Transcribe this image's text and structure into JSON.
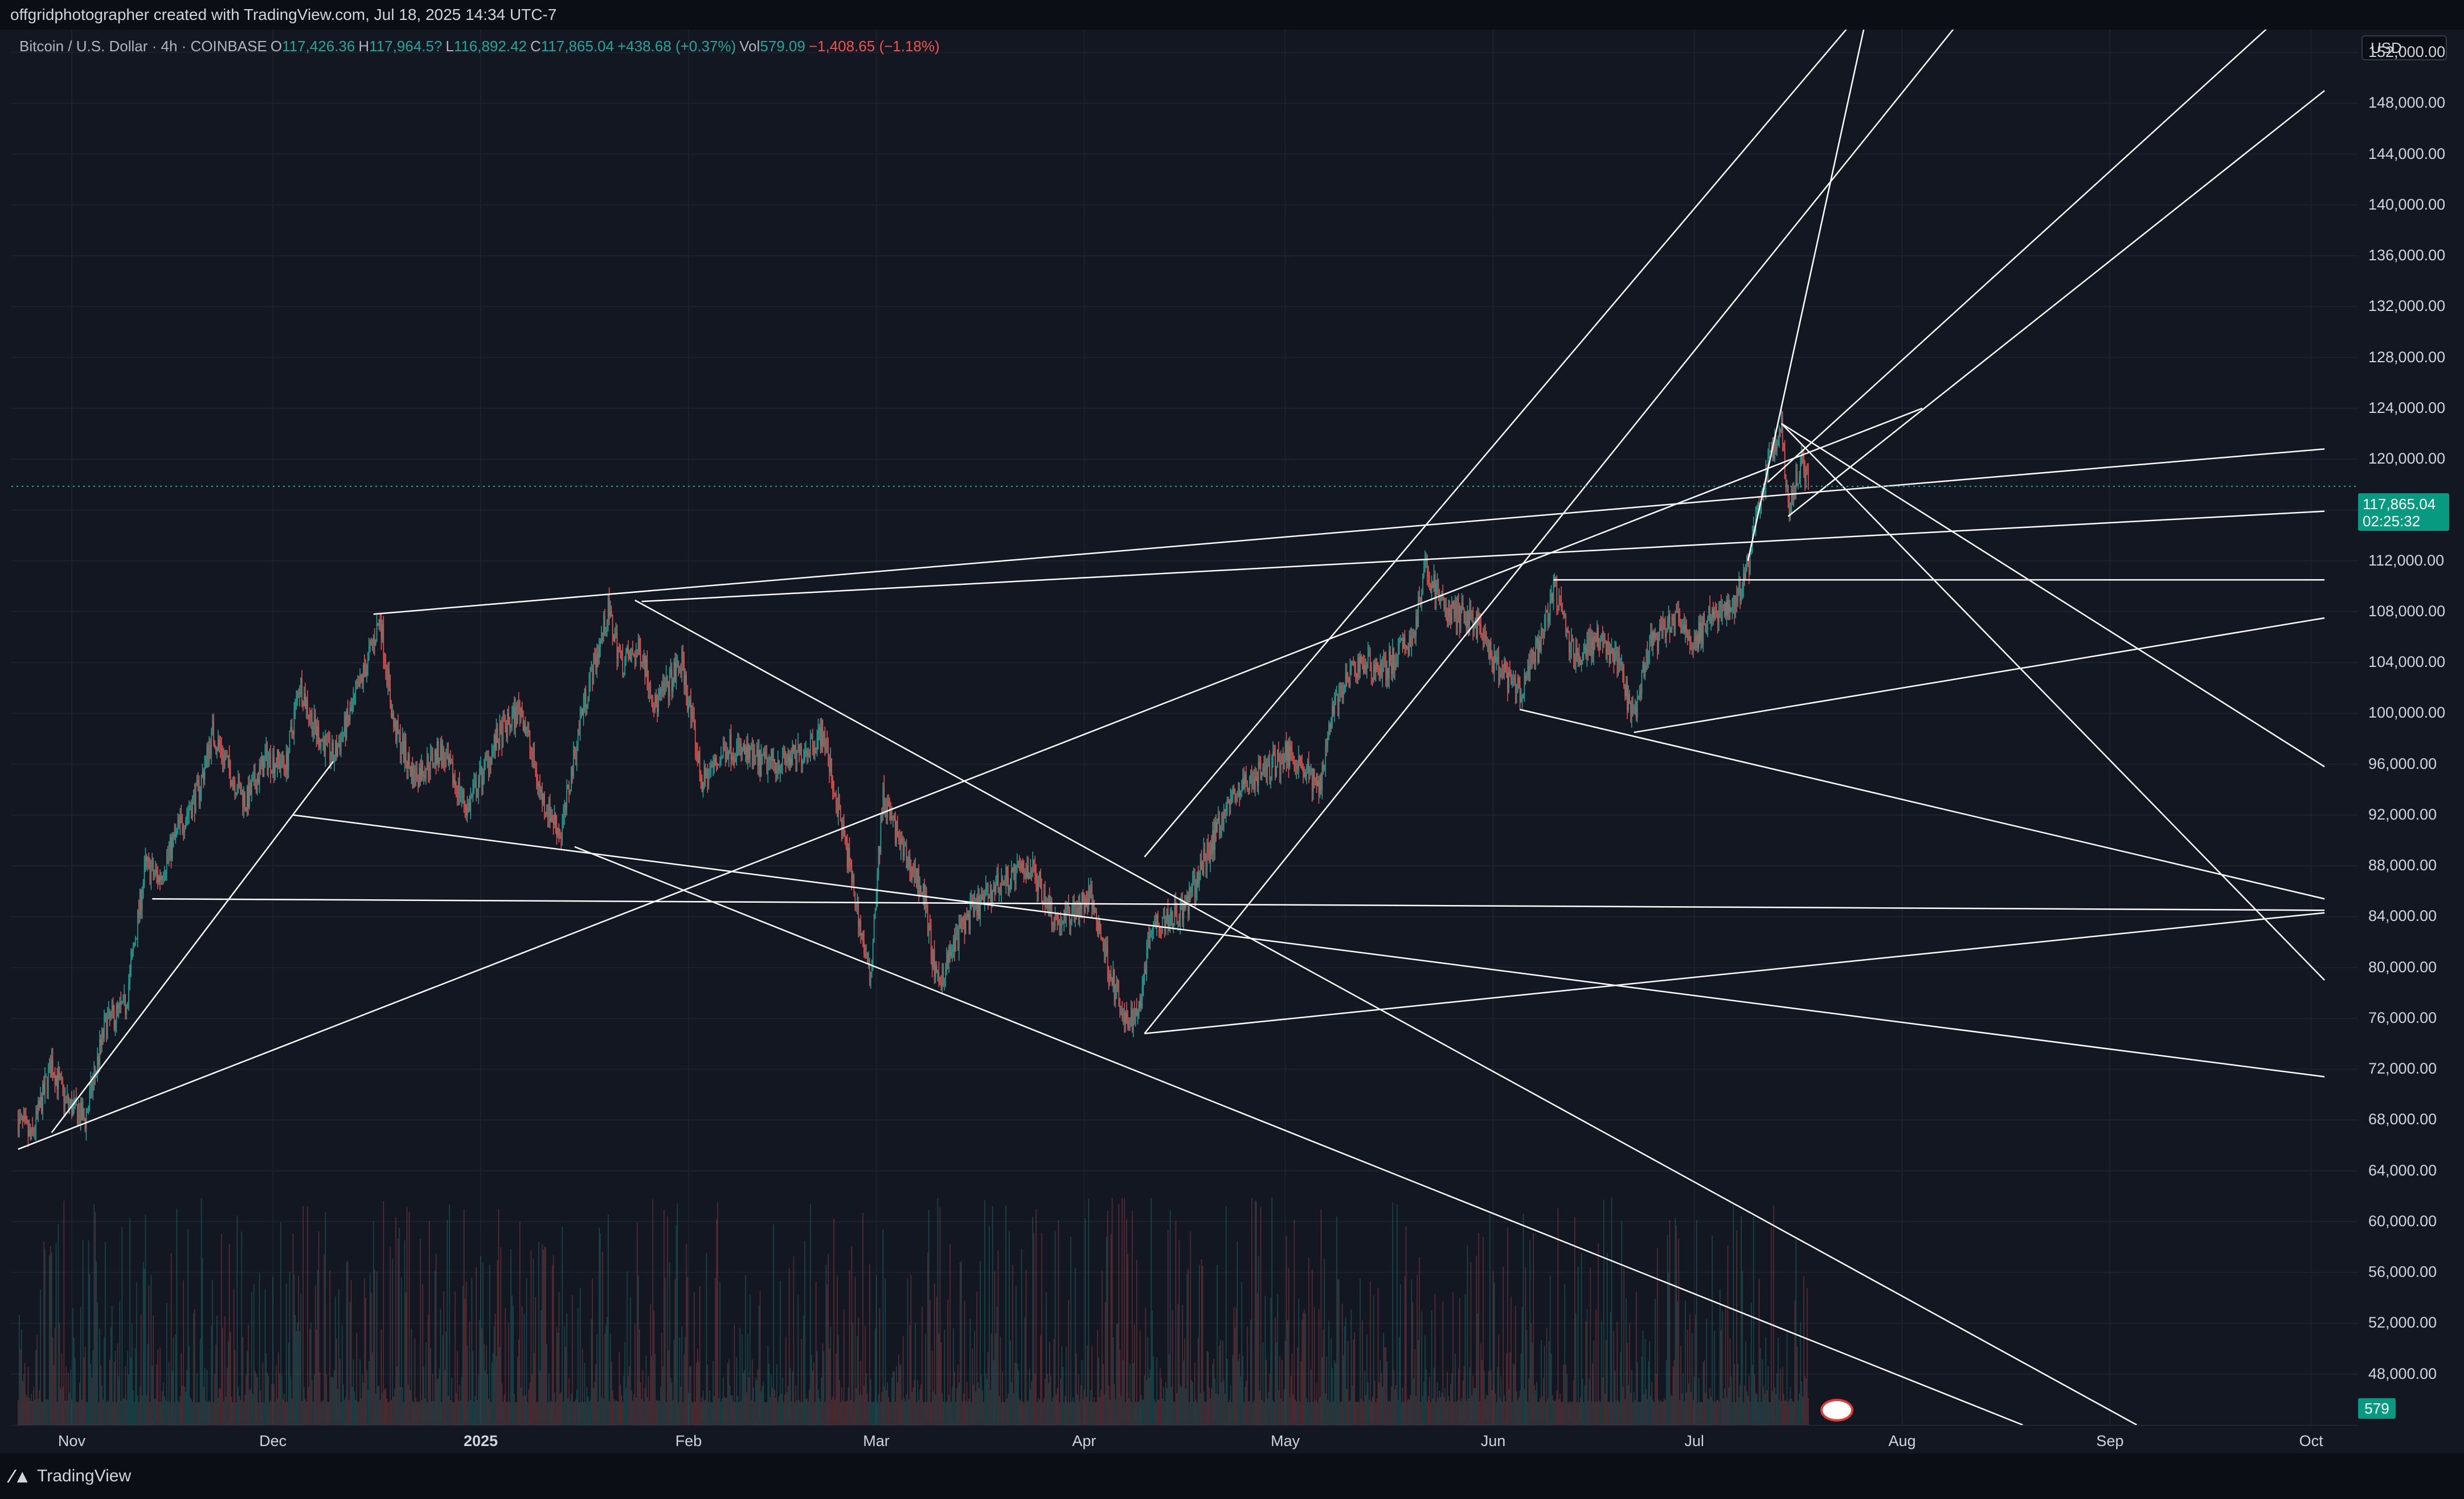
{
  "header": {
    "credit": "offgridphotographer created with TradingView.com, Jul 18, 2025 14:34 UTC-7"
  },
  "legend": {
    "symbol": "Bitcoin / U.S. Dollar · 4h · COINBASE",
    "o_label": "O",
    "o_value": "117,426.36",
    "h_label": "H",
    "h_value": "117,964.5?",
    "l_label": "L",
    "l_value": "116,892.42",
    "c_label": "C",
    "c_value": "117,865.04",
    "change": "+438.68 (+0.37%)",
    "vol_label": "Vol",
    "vol_value": "579.09",
    "vol_change": "−1,408.65 (−1.18%)"
  },
  "currency_button": "USD",
  "last_price": {
    "value": "117,865.04",
    "countdown": "02:25:32"
  },
  "volume_tag": "579",
  "footer": {
    "brand": "TradingView"
  },
  "colors": {
    "up": "#26a69a",
    "down": "#ef5350",
    "background": "#131722",
    "lines": "#ffffff"
  },
  "chart_data": {
    "type": "candlestick",
    "timeframe": "4h",
    "ylim": [
      44000,
      154000
    ],
    "y_ticks": [
      152000,
      148000,
      144000,
      140000,
      136000,
      132000,
      128000,
      124000,
      120000,
      116000,
      112000,
      108000,
      104000,
      100000,
      96000,
      92000,
      88000,
      84000,
      80000,
      76000,
      72000,
      68000,
      64000,
      60000,
      56000,
      52000,
      48000
    ],
    "y_tick_labels": [
      "152,000.00",
      "148,000.00",
      "144,000.00",
      "140,000.00",
      "136,000.00",
      "132,000.00",
      "128,000.00",
      "124,000.00",
      "120,000.00",
      "116,000.00",
      "112,000.00",
      "108,000.00",
      "104,000.00",
      "100,000.00",
      "96,000.00",
      "92,000.00",
      "88,000.00",
      "84,000.00",
      "80,000.00",
      "76,000.00",
      "72,000.00",
      "68,000.00",
      "64,000.00",
      "60,000.00",
      "56,000.00",
      "52,000.00",
      "48,000.00"
    ],
    "x_ticks": [
      {
        "label": "Nov",
        "date": "2024-11-01"
      },
      {
        "label": "Dec",
        "date": "2024-12-01"
      },
      {
        "label": "2025",
        "date": "2025-01-01",
        "bold": true
      },
      {
        "label": "Feb",
        "date": "2025-02-01"
      },
      {
        "label": "Mar",
        "date": "2025-03-01"
      },
      {
        "label": "Apr",
        "date": "2025-04-01"
      },
      {
        "label": "May",
        "date": "2025-05-01"
      },
      {
        "label": "Jun",
        "date": "2025-06-01"
      },
      {
        "label": "Jul",
        "date": "2025-07-01"
      },
      {
        "label": "Aug",
        "date": "2025-08-01"
      },
      {
        "label": "Sep",
        "date": "2025-09-01"
      },
      {
        "label": "Oct",
        "date": "2025-10-01"
      }
    ],
    "price_path": [
      [
        "2024-10-24",
        68000
      ],
      [
        "2024-10-26",
        66500
      ],
      [
        "2024-10-29",
        72500
      ],
      [
        "2024-10-31",
        69500
      ],
      [
        "2024-11-03",
        68000
      ],
      [
        "2024-11-06",
        75500
      ],
      [
        "2024-11-09",
        77000
      ],
      [
        "2024-11-12",
        88000
      ],
      [
        "2024-11-14",
        87000
      ],
      [
        "2024-11-17",
        91000
      ],
      [
        "2024-11-20",
        94000
      ],
      [
        "2024-11-22",
        98500
      ],
      [
        "2024-11-25",
        95000
      ],
      [
        "2024-11-27",
        93000
      ],
      [
        "2024-11-30",
        96500
      ],
      [
        "2024-12-03",
        96000
      ],
      [
        "2024-12-05",
        102500
      ],
      [
        "2024-12-07",
        99000
      ],
      [
        "2024-12-10",
        96500
      ],
      [
        "2024-12-13",
        100500
      ],
      [
        "2024-12-17",
        107500
      ],
      [
        "2024-12-19",
        99000
      ],
      [
        "2024-12-22",
        95000
      ],
      [
        "2024-12-26",
        97000
      ],
      [
        "2024-12-30",
        92500
      ],
      [
        "2025-01-03",
        97500
      ],
      [
        "2025-01-07",
        100500
      ],
      [
        "2025-01-10",
        93500
      ],
      [
        "2025-01-13",
        90500
      ],
      [
        "2025-01-16",
        100000
      ],
      [
        "2025-01-20",
        108000
      ],
      [
        "2025-01-22",
        104000
      ],
      [
        "2025-01-25",
        105000
      ],
      [
        "2025-01-27",
        100500
      ],
      [
        "2025-01-31",
        104000
      ],
      [
        "2025-02-03",
        94500
      ],
      [
        "2025-02-07",
        97500
      ],
      [
        "2025-02-12",
        96000
      ],
      [
        "2025-02-17",
        96500
      ],
      [
        "2025-02-21",
        98500
      ],
      [
        "2025-02-25",
        88000
      ],
      [
        "2025-02-28",
        79000
      ],
      [
        "2025-03-02",
        93500
      ],
      [
        "2025-03-05",
        89000
      ],
      [
        "2025-03-08",
        86000
      ],
      [
        "2025-03-10",
        78500
      ],
      [
        "2025-03-14",
        83500
      ],
      [
        "2025-03-19",
        86500
      ],
      [
        "2025-03-24",
        88000
      ],
      [
        "2025-03-28",
        83500
      ],
      [
        "2025-04-02",
        85500
      ],
      [
        "2025-04-07",
        75500
      ],
      [
        "2025-04-09",
        76500
      ],
      [
        "2025-04-11",
        83500
      ],
      [
        "2025-04-16",
        84500
      ],
      [
        "2025-04-22",
        92500
      ],
      [
        "2025-04-25",
        94500
      ],
      [
        "2025-05-02",
        97000
      ],
      [
        "2025-05-06",
        94000
      ],
      [
        "2025-05-08",
        100500
      ],
      [
        "2025-05-12",
        104000
      ],
      [
        "2025-05-16",
        103500
      ],
      [
        "2025-05-20",
        106000
      ],
      [
        "2025-05-22",
        111500
      ],
      [
        "2025-05-25",
        108000
      ],
      [
        "2025-05-29",
        107500
      ],
      [
        "2025-06-01",
        104000
      ],
      [
        "2025-06-05",
        101500
      ],
      [
        "2025-06-08",
        105500
      ],
      [
        "2025-06-10",
        110000
      ],
      [
        "2025-06-13",
        104500
      ],
      [
        "2025-06-17",
        106000
      ],
      [
        "2025-06-20",
        103500
      ],
      [
        "2025-06-22",
        99000
      ],
      [
        "2025-06-24",
        105000
      ],
      [
        "2025-06-28",
        107500
      ],
      [
        "2025-07-01",
        105500
      ],
      [
        "2025-07-04",
        108000
      ],
      [
        "2025-07-07",
        108500
      ],
      [
        "2025-07-09",
        111500
      ],
      [
        "2025-07-11",
        117500
      ],
      [
        "2025-07-14",
        122800
      ],
      [
        "2025-07-15",
        116000
      ],
      [
        "2025-07-17",
        120000
      ],
      [
        "2025-07-18",
        117865
      ]
    ],
    "trendlines": [
      [
        [
          "2024-10-24",
          65700
        ],
        [
          "2025-08-04",
          124000
        ]
      ],
      [
        [
          "2024-10-29",
          67000
        ],
        [
          "2024-12-10",
          96200
        ]
      ],
      [
        [
          "2024-11-13",
          85400
        ],
        [
          "2025-10-03",
          84500
        ]
      ],
      [
        [
          "2024-12-16",
          107800
        ],
        [
          "2025-10-03",
          120800
        ]
      ],
      [
        [
          "2025-01-25",
          108800
        ],
        [
          "2025-10-03",
          115900
        ]
      ],
      [
        [
          "2024-12-04",
          92000
        ],
        [
          "2025-10-03",
          71400
        ]
      ],
      [
        [
          "2025-01-15",
          89500
        ],
        [
          "2025-08-19",
          44000
        ]
      ],
      [
        [
          "2025-01-24",
          108900
        ],
        [
          "2025-09-05",
          44000
        ]
      ],
      [
        [
          "2025-04-10",
          74800
        ],
        [
          "2025-10-03",
          84300
        ]
      ],
      [
        [
          "2025-04-10",
          88700
        ],
        [
          "2025-08-01",
          159000
        ]
      ],
      [
        [
          "2025-04-10",
          74800
        ],
        [
          "2025-08-15",
          158000
        ]
      ],
      [
        [
          "2025-06-05",
          100300
        ],
        [
          "2025-10-03",
          85400
        ]
      ],
      [
        [
          "2025-06-22",
          98500
        ],
        [
          "2025-10-03",
          107500
        ]
      ],
      [
        [
          "2025-06-10",
          110500
        ],
        [
          "2025-10-03",
          110500
        ]
      ],
      [
        [
          "2025-07-14",
          122800
        ],
        [
          "2025-10-03",
          79000
        ]
      ],
      [
        [
          "2025-07-14",
          122800
        ],
        [
          "2025-10-03",
          95800
        ]
      ],
      [
        [
          "2025-07-12",
          118200
        ],
        [
          "2025-10-03",
          158000
        ]
      ],
      [
        [
          "2025-07-15",
          115500
        ],
        [
          "2025-10-03",
          149000
        ]
      ],
      [
        [
          "2025-07-09",
          112000
        ],
        [
          "2025-07-28",
          158000
        ]
      ]
    ]
  }
}
